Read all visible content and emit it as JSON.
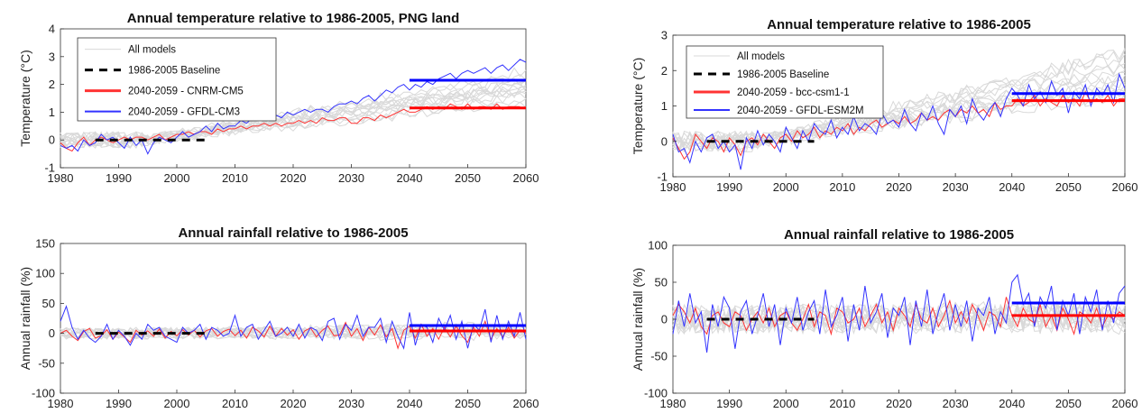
{
  "chart_data": [
    {
      "type": "line",
      "title": "Annual temperature relative to 1986-2005, PNG land",
      "xlabel": "",
      "ylabel": "Temperature (°C)",
      "xlim": [
        1980,
        2060
      ],
      "ylim": [
        -1,
        4
      ],
      "xticks": [
        "1980",
        "1990",
        "2000",
        "2010",
        "2020",
        "2030",
        "2040",
        "2050",
        "2060"
      ],
      "yticks": [
        "-1",
        "0",
        "1",
        "2",
        "3",
        "4"
      ],
      "legend": {
        "placement": "top-left",
        "entries": [
          "All models",
          "1986-2005 Baseline",
          "2040-2059 - CNRM-CM5",
          "2040-2059 - GFDL-CM3"
        ]
      },
      "colors": {
        "ensemble": "#d9d9d9",
        "baseline": "#000000",
        "red": "#ff3333",
        "blue": "#3333ff"
      },
      "baseline": {
        "x": [
          1986,
          2005
        ],
        "y": 0
      },
      "period_means": [
        {
          "name": "2040-2059 - CNRM-CM5",
          "x": [
            2040,
            2060
          ],
          "y": 1.15,
          "color": "#ff0000"
        },
        {
          "name": "2040-2059 - GFDL-CM3",
          "x": [
            2040,
            2060
          ],
          "y": 2.15,
          "color": "#0000ff"
        }
      ],
      "series": [
        {
          "name": "2040-2059 - CNRM-CM5",
          "color": "#ff3333",
          "x_start": 1980,
          "values": [
            -0.1,
            -0.3,
            -0.4,
            -0.1,
            0.1,
            -0.2,
            0.0,
            0.1,
            0.0,
            -0.1,
            0.0,
            0.1,
            0.0,
            0.1,
            0.1,
            0.0,
            0.1,
            0.2,
            0.0,
            0.1,
            0.2,
            0.2,
            0.3,
            0.2,
            0.3,
            0.3,
            0.2,
            0.4,
            0.3,
            0.4,
            0.4,
            0.5,
            0.4,
            0.5,
            0.5,
            0.6,
            0.5,
            0.6,
            0.5,
            0.6,
            0.6,
            0.7,
            0.6,
            0.7,
            0.6,
            0.8,
            0.7,
            0.7,
            0.8,
            0.8,
            0.6,
            0.6,
            0.8,
            0.8,
            0.7,
            0.9,
            0.8,
            0.9,
            1.0,
            1.1,
            1.0,
            1.0,
            1.1,
            1.2,
            1.1,
            1.2,
            1.1,
            1.3,
            1.2,
            1.1,
            1.3,
            1.1,
            1.2,
            1.2,
            1.1,
            1.3,
            1.1,
            1.2,
            1.2,
            1.2
          ]
        },
        {
          "name": "2040-2059 - GFDL-CM3",
          "color": "#3333ff",
          "x_start": 1980,
          "values": [
            -0.2,
            -0.3,
            -0.2,
            -0.4,
            0.0,
            -0.2,
            -0.1,
            0.2,
            0.0,
            0.1,
            -0.1,
            -0.3,
            0.1,
            -0.2,
            0.0,
            -0.5,
            -0.1,
            0.1,
            0.0,
            -0.1,
            0.1,
            0.3,
            0.1,
            0.2,
            0.3,
            0.5,
            0.3,
            0.6,
            0.4,
            0.5,
            0.5,
            0.7,
            0.6,
            0.8,
            0.7,
            0.9,
            0.8,
            0.9,
            0.8,
            1.0,
            0.9,
            1.0,
            1.1,
            1.0,
            1.1,
            1.1,
            1.0,
            1.2,
            1.3,
            1.3,
            1.4,
            1.3,
            1.5,
            1.6,
            1.4,
            1.6,
            1.8,
            1.7,
            1.9,
            2.0,
            1.8,
            2.0,
            1.9,
            2.1,
            2.0,
            2.2,
            2.3,
            2.4,
            2.2,
            2.4,
            2.5,
            2.4,
            2.5,
            2.6,
            2.4,
            2.6,
            2.7,
            2.5,
            2.7,
            2.9,
            2.8
          ]
        }
      ]
    },
    {
      "type": "line",
      "title": "Annual rainfall relative to 1986-2005",
      "xlabel": "",
      "ylabel": "Annual rainfall (%)",
      "xlim": [
        1980,
        2060
      ],
      "ylim": [
        -100,
        150
      ],
      "xticks": [
        "1980",
        "1990",
        "2000",
        "2010",
        "2020",
        "2030",
        "2040",
        "2050",
        "2060"
      ],
      "yticks": [
        "-100",
        "-50",
        "0",
        "50",
        "100",
        "150"
      ],
      "colors": {
        "ensemble": "#d9d9d9",
        "baseline": "#000000",
        "red": "#ff3333",
        "blue": "#3333ff"
      },
      "baseline": {
        "x": [
          1986,
          2005
        ],
        "y": 0
      },
      "period_means": [
        {
          "name": "2040-2059 - CNRM-CM5",
          "x": [
            2040,
            2060
          ],
          "y": 4,
          "color": "#ff0000"
        },
        {
          "name": "2040-2059 - GFDL-CM3",
          "x": [
            2040,
            2060
          ],
          "y": 13,
          "color": "#0000ff"
        }
      ],
      "series": [
        {
          "name": "2040-2059 - CNRM-CM5",
          "color": "#ff3333",
          "x_start": 1980,
          "values": [
            0,
            5,
            -5,
            -12,
            3,
            8,
            -8,
            -4,
            6,
            -10,
            2,
            -6,
            -15,
            5,
            -3,
            4,
            -5,
            7,
            -8,
            3,
            -4,
            6,
            -3,
            5,
            -6,
            4,
            8,
            -5,
            3,
            7,
            -4,
            5,
            -8,
            10,
            4,
            -6,
            12,
            -5,
            8,
            -3,
            6,
            -10,
            4,
            9,
            -6,
            5,
            12,
            -4,
            -3,
            18,
            -5,
            8,
            -12,
            10,
            -3,
            14,
            -6,
            8,
            -25,
            5,
            12,
            -8,
            15,
            -5,
            8,
            -10,
            10,
            -6,
            12,
            -4,
            -15,
            10,
            -5,
            20,
            -10,
            8,
            -6,
            10,
            -8,
            5,
            0
          ]
        },
        {
          "name": "2040-2059 - GFDL-CM3",
          "color": "#3333ff",
          "x_start": 1980,
          "values": [
            20,
            45,
            10,
            -10,
            5,
            -8,
            -15,
            -5,
            15,
            -10,
            5,
            -5,
            -20,
            0,
            -10,
            15,
            5,
            10,
            -5,
            -10,
            -15,
            10,
            0,
            5,
            15,
            -10,
            10,
            5,
            -5,
            0,
            30,
            -5,
            10,
            15,
            -10,
            5,
            20,
            -5,
            0,
            10,
            -5,
            15,
            -8,
            10,
            5,
            -12,
            20,
            25,
            -10,
            15,
            5,
            30,
            -5,
            10,
            10,
            25,
            -15,
            20,
            -5,
            -25,
            35,
            -20,
            15,
            10,
            -15,
            25,
            5,
            30,
            -10,
            20,
            -25,
            15,
            5,
            40,
            -15,
            30,
            -10,
            20,
            -5,
            35,
            -10
          ]
        }
      ]
    },
    {
      "type": "line",
      "title": "Annual temperature relative to 1986-2005",
      "xlabel": "",
      "ylabel": "Temperature (°C)",
      "xlim": [
        1980,
        2060
      ],
      "ylim": [
        -1,
        3
      ],
      "xticks": [
        "1980",
        "1990",
        "2000",
        "2010",
        "2020",
        "2030",
        "2040",
        "2050",
        "2060"
      ],
      "yticks": [
        "-1",
        "0",
        "1",
        "2",
        "3"
      ],
      "legend": {
        "placement": "top-left",
        "entries": [
          "All models",
          "1986-2005 Baseline",
          "2040-2059 - bcc-csm1-1",
          "2040-2059 - GFDL-ESM2M"
        ]
      },
      "colors": {
        "ensemble": "#d9d9d9",
        "baseline": "#000000",
        "red": "#ff3333",
        "blue": "#3333ff"
      },
      "baseline": {
        "x": [
          1986,
          2005
        ],
        "y": 0
      },
      "period_means": [
        {
          "name": "2040-2059 - bcc-csm1-1",
          "x": [
            2040,
            2060
          ],
          "y": 1.15,
          "color": "#ff0000"
        },
        {
          "name": "2040-2059 - GFDL-ESM2M",
          "x": [
            2040,
            2060
          ],
          "y": 1.35,
          "color": "#0000ff"
        }
      ],
      "series": [
        {
          "name": "2040-2059 - bcc-csm1-1",
          "color": "#ff3333",
          "x_start": 1980,
          "values": [
            0.1,
            -0.2,
            -0.5,
            -0.3,
            0.2,
            0.0,
            -0.2,
            0.1,
            0.0,
            -0.3,
            0.1,
            -0.1,
            -0.4,
            0.0,
            0.1,
            -0.1,
            0.2,
            0.0,
            -0.2,
            0.1,
            0.2,
            0.0,
            0.3,
            0.1,
            0.2,
            0.4,
            0.1,
            0.3,
            0.2,
            0.4,
            0.3,
            0.5,
            0.2,
            0.4,
            0.3,
            0.5,
            0.6,
            0.4,
            0.5,
            0.6,
            0.5,
            0.7,
            0.5,
            0.6,
            0.8,
            0.6,
            0.7,
            0.6,
            0.8,
            0.9,
            0.7,
            0.9,
            0.8,
            1.0,
            0.8,
            0.9,
            0.7,
            1.1,
            0.9,
            1.0,
            1.0,
            1.2,
            1.0,
            1.1,
            1.3,
            1.0,
            1.2,
            1.1,
            1.0,
            1.3,
            1.1,
            1.2,
            1.0,
            1.4,
            1.1,
            1.2,
            1.1,
            1.3,
            1.0,
            1.2,
            1.2
          ]
        },
        {
          "name": "2040-2059 - GFDL-ESM2M",
          "color": "#3333ff",
          "x_start": 1980,
          "values": [
            0.2,
            -0.3,
            -0.2,
            -0.6,
            0.0,
            -0.3,
            0.1,
            0.2,
            -0.2,
            0.0,
            -0.3,
            -0.1,
            -0.8,
            0.1,
            -0.2,
            0.3,
            -0.1,
            0.2,
            0.0,
            -0.3,
            0.4,
            0.1,
            -0.2,
            0.3,
            0.0,
            0.5,
            0.3,
            0.2,
            0.6,
            0.1,
            0.4,
            0.2,
            0.7,
            0.3,
            0.5,
            0.4,
            0.2,
            0.8,
            0.5,
            0.6,
            0.4,
            0.9,
            0.5,
            0.3,
            0.8,
            0.6,
            1.0,
            0.5,
            0.2,
            0.9,
            0.7,
            1.0,
            0.5,
            1.2,
            0.8,
            0.6,
            0.9,
            1.1,
            0.7,
            1.2,
            1.5,
            1.3,
            1.0,
            1.6,
            1.2,
            1.4,
            1.1,
            1.7,
            1.3,
            1.5,
            0.8,
            1.4,
            1.2,
            1.6,
            1.0,
            1.5,
            1.3,
            1.6,
            1.1,
            1.9,
            1.5
          ]
        }
      ]
    },
    {
      "type": "line",
      "title": "Annual rainfall relative to 1986-2005",
      "xlabel": "",
      "ylabel": "Annual rainfall (%)",
      "xlim": [
        1980,
        2060
      ],
      "ylim": [
        -100,
        100
      ],
      "xticks": [
        "1980",
        "1990",
        "2000",
        "2010",
        "2020",
        "2030",
        "2040",
        "2050",
        "2060"
      ],
      "yticks": [
        "-100",
        "-50",
        "0",
        "50",
        "100"
      ],
      "colors": {
        "ensemble": "#d9d9d9",
        "baseline": "#000000",
        "red": "#ff3333",
        "blue": "#3333ff"
      },
      "baseline": {
        "x": [
          1986,
          2005
        ],
        "y": 0
      },
      "period_means": [
        {
          "name": "2040-2059 - bcc-csm1-1",
          "x": [
            2040,
            2060
          ],
          "y": 5,
          "color": "#ff0000"
        },
        {
          "name": "2040-2059 - GFDL-ESM2M",
          "x": [
            2040,
            2060
          ],
          "y": 22,
          "color": "#0000ff"
        }
      ],
      "series": [
        {
          "name": "2040-2059 - bcc-csm1-1",
          "color": "#ff3333",
          "x_start": 1980,
          "values": [
            5,
            20,
            10,
            -5,
            15,
            -10,
            -20,
            5,
            10,
            -5,
            -10,
            10,
            5,
            -15,
            0,
            10,
            -5,
            15,
            -10,
            5,
            10,
            -5,
            -15,
            0,
            20,
            -10,
            10,
            5,
            -20,
            15,
            10,
            -5,
            0,
            15,
            -10,
            5,
            20,
            -5,
            10,
            -15,
            15,
            5,
            -10,
            20,
            0,
            -5,
            15,
            -10,
            5,
            25,
            -5,
            10,
            -5,
            20,
            5,
            -15,
            10,
            5,
            -10,
            30,
            5,
            -10,
            15,
            0,
            -5,
            20,
            -10,
            5,
            -15,
            15,
            0,
            -20,
            10,
            5,
            -5,
            15,
            -10,
            5,
            0,
            10,
            5
          ]
        },
        {
          "name": "2040-2059 - GFDL-ESM2M",
          "color": "#3333ff",
          "x_start": 1980,
          "values": [
            -20,
            25,
            -10,
            35,
            -5,
            10,
            -45,
            20,
            -10,
            30,
            15,
            -40,
            10,
            25,
            -20,
            5,
            35,
            -10,
            20,
            -35,
            15,
            -5,
            30,
            -15,
            10,
            25,
            -20,
            40,
            -10,
            5,
            30,
            -30,
            20,
            -15,
            45,
            -5,
            10,
            35,
            -25,
            15,
            5,
            30,
            -35,
            25,
            -10,
            40,
            -20,
            10,
            35,
            -15,
            20,
            -10,
            25,
            -30,
            15,
            5,
            30,
            -20,
            10,
            -5,
            50,
            60,
            20,
            35,
            -10,
            30,
            15,
            45,
            -15,
            25,
            5,
            35,
            -20,
            30,
            10,
            40,
            -15,
            25,
            -5,
            35,
            45
          ]
        }
      ]
    }
  ]
}
